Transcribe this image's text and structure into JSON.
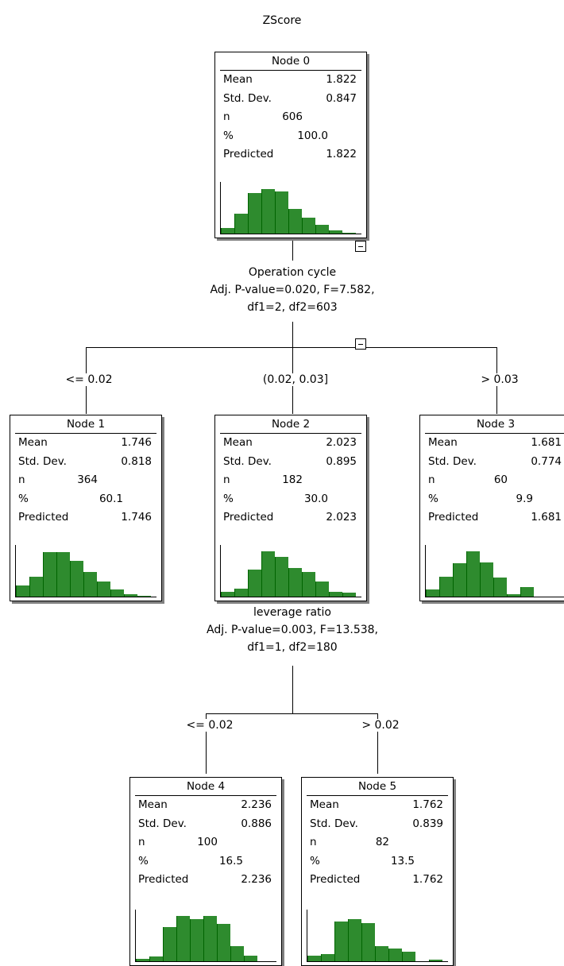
{
  "title": "ZScore",
  "row_labels": {
    "mean": "Mean",
    "sd": "Std. Dev.",
    "n": "n",
    "pct": "%",
    "pred": "Predicted"
  },
  "bar_color": "#2e8b2e",
  "nodes": [
    {
      "name": "Node 0",
      "mean": "1.822",
      "sd": "0.847",
      "n": "606",
      "pct": "100.0",
      "pred": "1.822",
      "hist": [
        0.12,
        0.4,
        0.82,
        0.9,
        0.85,
        0.5,
        0.32,
        0.18,
        0.06,
        0.02
      ]
    },
    {
      "name": "Node 1",
      "mean": "1.746",
      "sd": "0.818",
      "n": "364",
      "pct": "60.1",
      "pred": "1.746",
      "hist": [
        0.22,
        0.4,
        0.9,
        0.9,
        0.72,
        0.5,
        0.3,
        0.14,
        0.05,
        0.02
      ]
    },
    {
      "name": "Node 2",
      "mean": "2.023",
      "sd": "0.895",
      "n": "182",
      "pct": "30.0",
      "pred": "2.023",
      "hist": [
        0.1,
        0.16,
        0.55,
        0.92,
        0.8,
        0.58,
        0.5,
        0.3,
        0.1,
        0.08
      ]
    },
    {
      "name": "Node 3",
      "mean": "1.681",
      "sd": "0.774",
      "n": "60",
      "pct": "9.9",
      "pred": "1.681",
      "hist": [
        0.15,
        0.4,
        0.68,
        0.92,
        0.7,
        0.38,
        0.05,
        0.2,
        0,
        0
      ]
    },
    {
      "name": "Node 4",
      "mean": "2.236",
      "sd": "0.886",
      "n": "100",
      "pct": "16.5",
      "pred": "2.236",
      "hist": [
        0.05,
        0.1,
        0.7,
        0.92,
        0.85,
        0.92,
        0.75,
        0.3,
        0.12,
        0
      ]
    },
    {
      "name": "Node 5",
      "mean": "1.762",
      "sd": "0.839",
      "n": "82",
      "pct": "13.5",
      "pred": "1.762",
      "hist": [
        0.12,
        0.15,
        0.8,
        0.85,
        0.78,
        0.3,
        0.25,
        0.2,
        0,
        0.04
      ]
    }
  ],
  "splits": [
    {
      "lines": [
        "Operation cycle",
        "Adj. P-value=0.020, F=7.582,",
        "df1=2, df2=603"
      ]
    },
    {
      "lines": [
        "leverage ratio",
        "Adj. P-value=0.003, F=13.538,",
        "df1=1, df2=180"
      ]
    }
  ],
  "branch_labels": [
    "<= 0.02",
    "(0.02, 0.03]",
    "> 0.03",
    "<= 0.02",
    "> 0.02"
  ]
}
